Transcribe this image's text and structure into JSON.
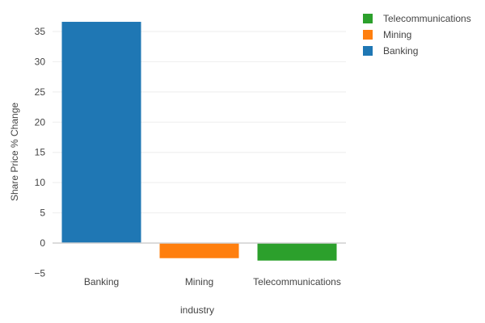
{
  "chart_data": {
    "type": "bar",
    "categories": [
      "Banking",
      "Mining",
      "Telecommunications"
    ],
    "values": [
      36.6,
      -2.5,
      -2.9
    ],
    "colors": [
      "#1f77b4",
      "#ff7f0e",
      "#2ca02c"
    ],
    "xlabel": "industry",
    "ylabel": "Share Price % Change",
    "ylim": [
      -5,
      38
    ],
    "yticks": [
      35,
      30,
      25,
      20,
      15,
      10,
      5,
      0,
      -5
    ],
    "ytick_labels": [
      "35",
      "30",
      "25",
      "20",
      "15",
      "10",
      "5",
      "0",
      "−5"
    ],
    "grid": true,
    "legend": {
      "placement": "top-right",
      "entries": [
        {
          "label": "Telecommunications",
          "color": "#2ca02c"
        },
        {
          "label": "Mining",
          "color": "#ff7f0e"
        },
        {
          "label": "Banking",
          "color": "#1f77b4"
        }
      ]
    }
  }
}
